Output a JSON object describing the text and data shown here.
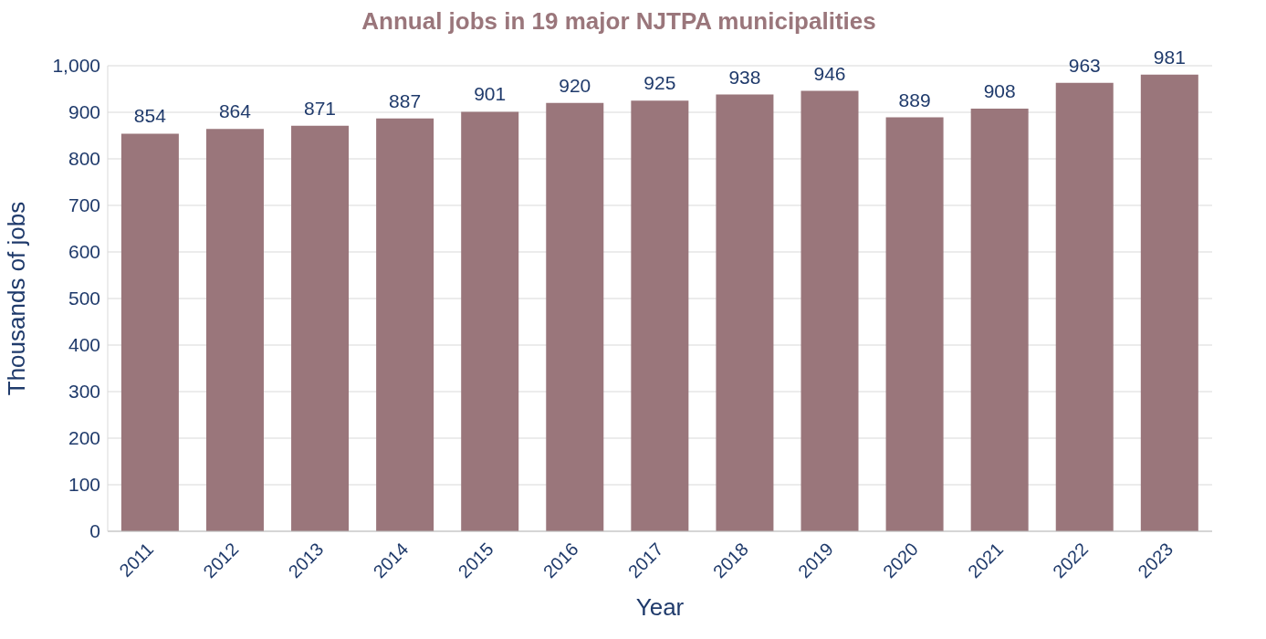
{
  "chart_data": {
    "type": "bar",
    "title": "Annual jobs in 19 major NJTPA municipalities",
    "xlabel": "Year",
    "ylabel": "Thousands of jobs",
    "categories": [
      "2011",
      "2012",
      "2013",
      "2014",
      "2015",
      "2016",
      "2017",
      "2018",
      "2019",
      "2020",
      "2021",
      "2022",
      "2023"
    ],
    "values": [
      854,
      864,
      871,
      887,
      901,
      920,
      925,
      938,
      946,
      889,
      908,
      963,
      981
    ],
    "color": "#9a767b",
    "ylim": [
      0,
      1000
    ],
    "yticks": [
      0,
      100,
      200,
      300,
      400,
      500,
      600,
      700,
      800,
      900,
      {
        "value": 1000,
        "label": "1,000"
      }
    ],
    "grid": "y",
    "data_labels": true
  }
}
